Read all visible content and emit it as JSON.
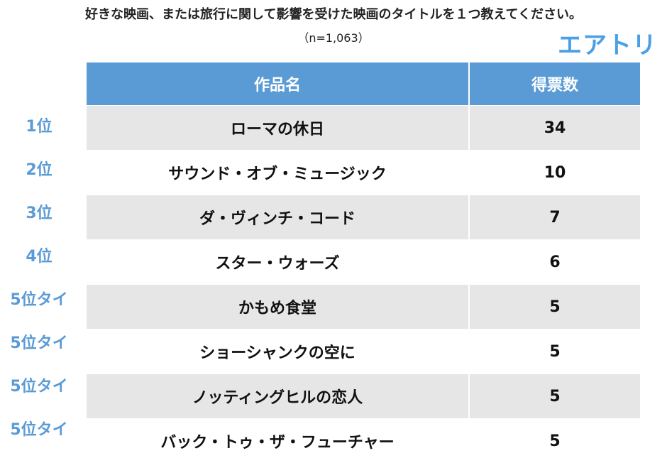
{
  "header": {
    "title": "好きな映画、または旅行に関して影響を受けた映画のタイトルを１つ教えてください。",
    "subtitle": "（n=1,063）",
    "logo": "エアトリ"
  },
  "table": {
    "col_title": "作品名",
    "col_votes": "得票数",
    "rows": [
      {
        "rank": "1位",
        "title": "ローマの休日",
        "votes": "34"
      },
      {
        "rank": "2位",
        "title": "サウンド・オブ・ミュージック",
        "votes": "10"
      },
      {
        "rank": "3位",
        "title": "ダ・ヴィンチ・コード",
        "votes": "7"
      },
      {
        "rank": "4位",
        "title": "スター・ウォーズ",
        "votes": "6"
      },
      {
        "rank": "5位タイ",
        "title": "かもめ食堂",
        "votes": "5"
      },
      {
        "rank": "5位タイ",
        "title": "ショーシャンクの空に",
        "votes": "5"
      },
      {
        "rank": "5位タイ",
        "title": "ノッティングヒルの恋人",
        "votes": "5"
      },
      {
        "rank": "5位タイ",
        "title": "バック・トゥ・ザ・フューチャー",
        "votes": "5"
      }
    ]
  },
  "colors": {
    "header_bg": "#5b9bd5",
    "rank_text": "#5b9bd5",
    "shade_bg": "#e6e6e6",
    "logo": "#4aa0e6"
  }
}
